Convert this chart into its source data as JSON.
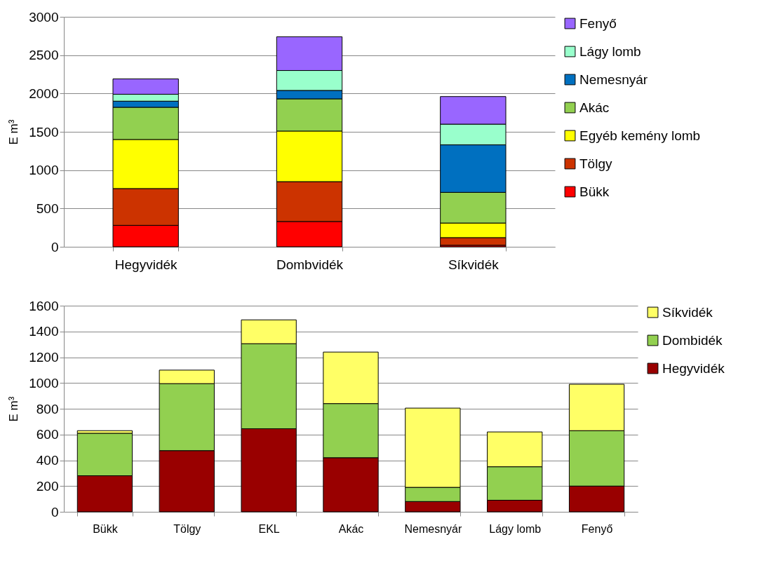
{
  "chart_data": [
    {
      "type": "bar",
      "stacked": true,
      "ylabel": "E m³",
      "categories": [
        "Hegyvidék",
        "Dombvidék",
        "Síkvidék"
      ],
      "ylim": [
        0,
        3000
      ],
      "yticks": [
        0,
        500,
        1000,
        1500,
        2000,
        2500,
        3000
      ],
      "grid": "y",
      "legend": "right",
      "series": [
        {
          "name": "Bükk",
          "color": "#ff0000",
          "values": [
            280,
            330,
            20
          ]
        },
        {
          "name": "Tölgy",
          "color": "#cc3300",
          "values": [
            480,
            520,
            100
          ]
        },
        {
          "name": "Egyéb kemény lomb",
          "color": "#ffff00",
          "values": [
            640,
            660,
            190
          ]
        },
        {
          "name": "Akác",
          "color": "#92d050",
          "values": [
            420,
            420,
            400
          ]
        },
        {
          "name": "Nemesnyár",
          "color": "#0070c0",
          "values": [
            80,
            110,
            620
          ]
        },
        {
          "name": "Lágy lomb",
          "color": "#99ffcc",
          "values": [
            90,
            260,
            270
          ]
        },
        {
          "name": "Fenyő",
          "color": "#9966ff",
          "values": [
            200,
            440,
            360
          ]
        }
      ]
    },
    {
      "type": "bar",
      "stacked": true,
      "ylabel": "E m³",
      "categories": [
        "Bükk",
        "Tölgy",
        "EKL",
        "Akác",
        "Nemesnyár",
        "Lágy lomb",
        "Fenyő"
      ],
      "ylim": [
        0,
        1600
      ],
      "yticks": [
        0,
        200,
        400,
        600,
        800,
        1000,
        1200,
        1400,
        1600
      ],
      "grid": "y",
      "legend": "right",
      "series": [
        {
          "name": "Hegyvidék",
          "color": "#990000",
          "values": [
            280,
            475,
            645,
            420,
            80,
            90,
            200
          ]
        },
        {
          "name": "Dombidék",
          "color": "#92d050",
          "values": [
            330,
            520,
            660,
            420,
            110,
            260,
            430
          ]
        },
        {
          "name": "Síkvidék",
          "color": "#ffff66",
          "values": [
            20,
            105,
            185,
            400,
            615,
            270,
            360
          ]
        }
      ]
    }
  ]
}
